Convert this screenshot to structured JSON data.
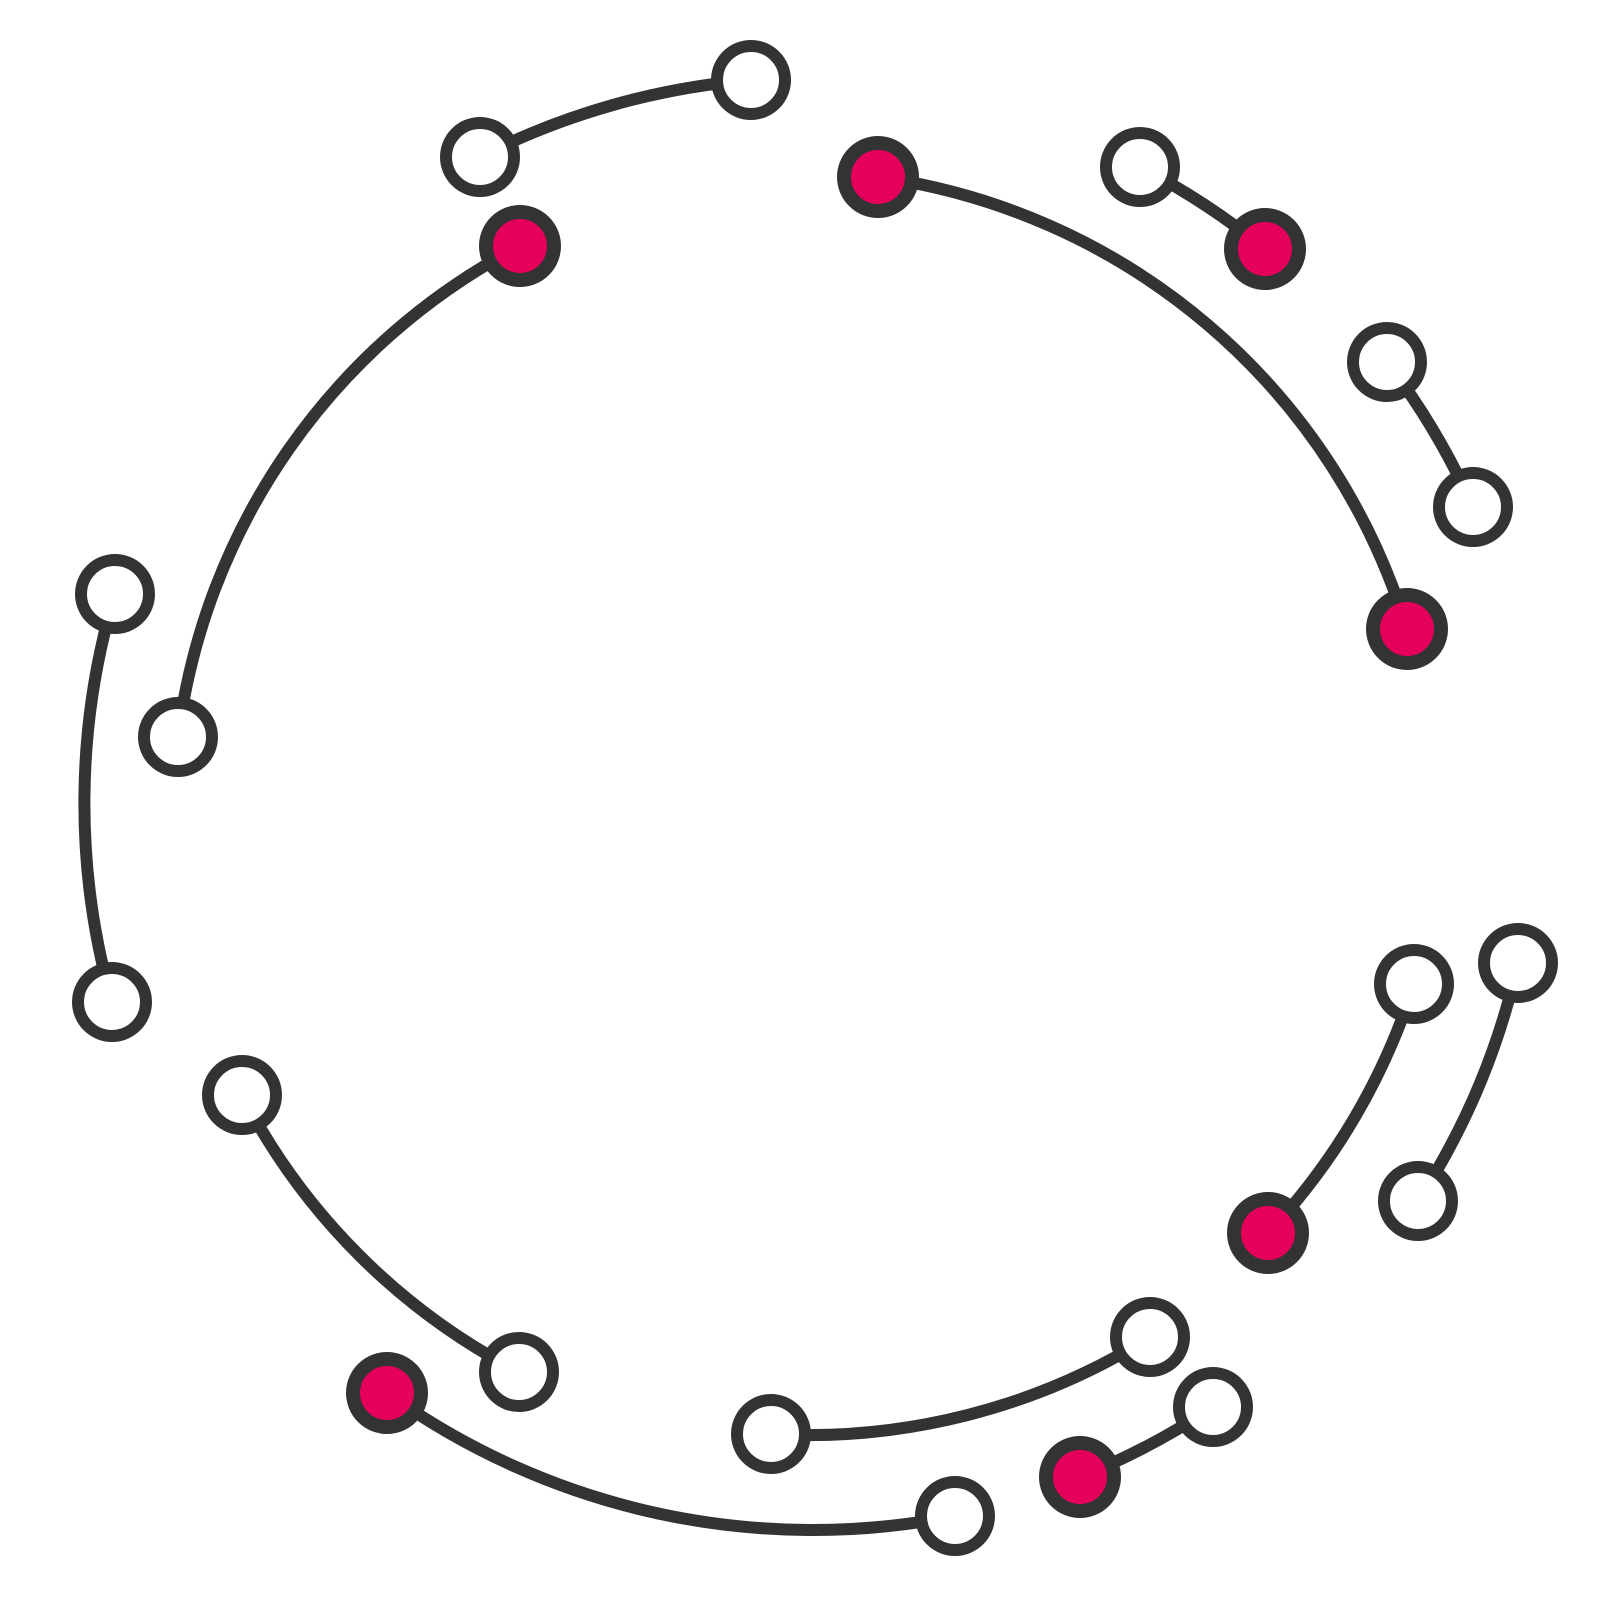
{
  "colors": {
    "background": "#ffffff",
    "stroke": "#333333",
    "node_empty": "#ffffff",
    "node_highlight": "#e5005c"
  },
  "arcs": [
    {
      "id": "arc-1",
      "from": "n-top-1",
      "to": "n-top-2"
    },
    {
      "id": "arc-2",
      "from": "n-red-upper-left",
      "to": "n-left-1"
    },
    {
      "id": "arc-3",
      "from": "n-left-2",
      "to": "n-left-3"
    },
    {
      "id": "arc-4",
      "from": "n-red-top",
      "to": "n-red-right"
    },
    {
      "id": "arc-5",
      "from": "n-topright-1",
      "to": "n-red-topright"
    },
    {
      "id": "arc-6",
      "from": "n-right-1",
      "to": "n-right-2"
    },
    {
      "id": "arc-7",
      "from": "n-red-lowright",
      "to": "n-lowright-1"
    },
    {
      "id": "arc-8",
      "from": "n-lowright-2",
      "to": "n-lowright-3"
    },
    {
      "id": "arc-9",
      "from": "n-lowleft-1",
      "to": "n-lowleft-2"
    },
    {
      "id": "arc-10",
      "from": "n-red-bottomleft",
      "to": "n-bottom-1"
    },
    {
      "id": "arc-11",
      "from": "n-bottom-2",
      "to": "n-bottom-3"
    },
    {
      "id": "arc-12",
      "from": "n-red-bottomright",
      "to": "n-bottom-4"
    }
  ],
  "nodes": [
    {
      "id": "n-top-1",
      "state": "empty"
    },
    {
      "id": "n-top-2",
      "state": "empty"
    },
    {
      "id": "n-red-upper-left",
      "state": "highlight"
    },
    {
      "id": "n-left-1",
      "state": "empty"
    },
    {
      "id": "n-left-2",
      "state": "empty"
    },
    {
      "id": "n-left-3",
      "state": "empty"
    },
    {
      "id": "n-red-top",
      "state": "highlight"
    },
    {
      "id": "n-red-right",
      "state": "highlight"
    },
    {
      "id": "n-topright-1",
      "state": "empty"
    },
    {
      "id": "n-red-topright",
      "state": "highlight"
    },
    {
      "id": "n-right-1",
      "state": "empty"
    },
    {
      "id": "n-right-2",
      "state": "empty"
    },
    {
      "id": "n-red-lowright",
      "state": "highlight"
    },
    {
      "id": "n-lowright-1",
      "state": "empty"
    },
    {
      "id": "n-lowright-2",
      "state": "empty"
    },
    {
      "id": "n-lowright-3",
      "state": "empty"
    },
    {
      "id": "n-lowleft-1",
      "state": "empty"
    },
    {
      "id": "n-lowleft-2",
      "state": "empty"
    },
    {
      "id": "n-red-bottomleft",
      "state": "highlight"
    },
    {
      "id": "n-bottom-1",
      "state": "empty"
    },
    {
      "id": "n-bottom-2",
      "state": "empty"
    },
    {
      "id": "n-bottom-3",
      "state": "empty"
    },
    {
      "id": "n-red-bottomright",
      "state": "highlight"
    },
    {
      "id": "n-bottom-4",
      "state": "empty"
    }
  ]
}
